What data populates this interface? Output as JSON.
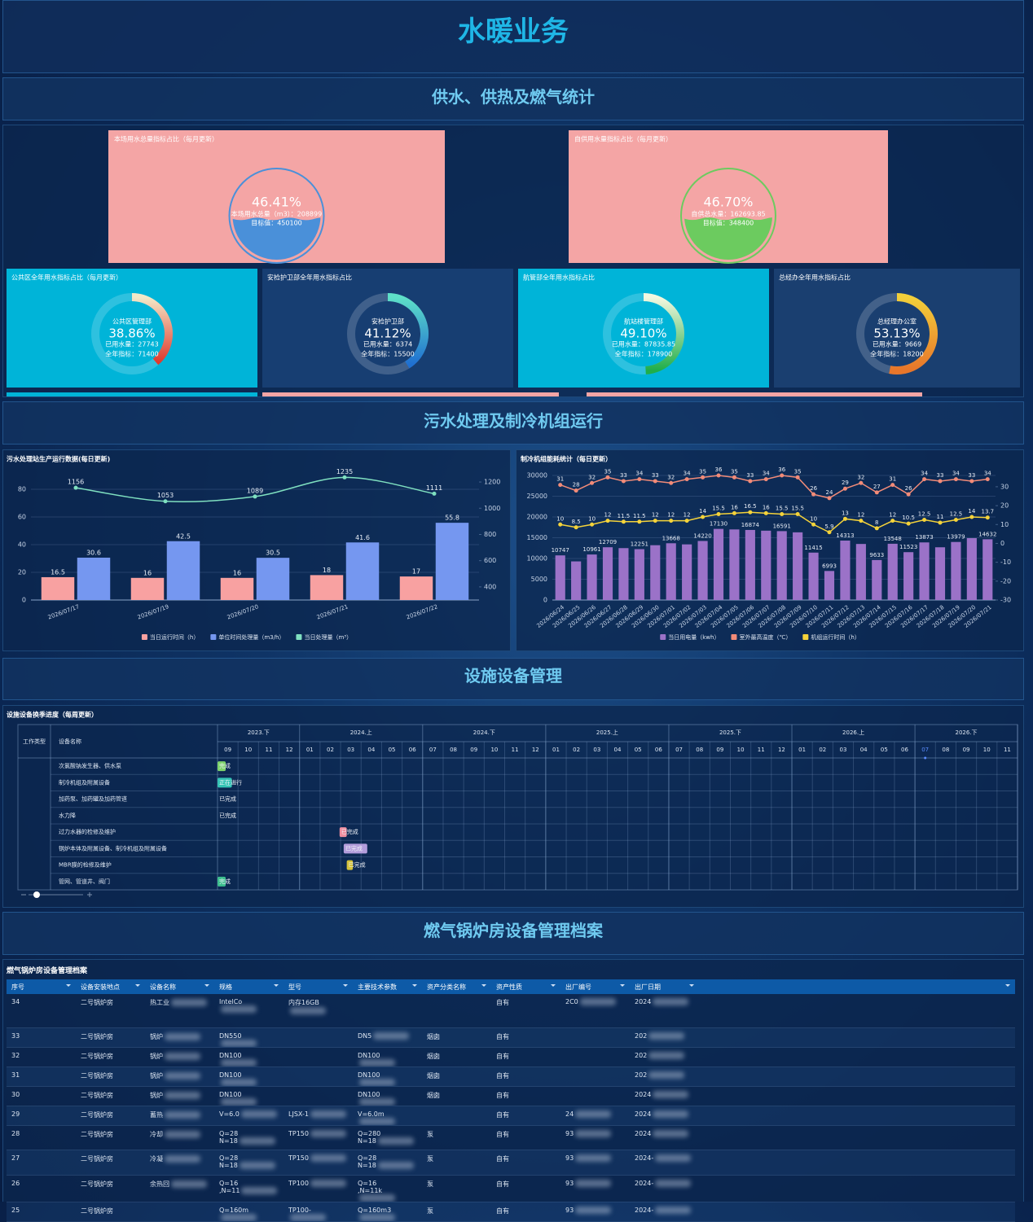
{
  "header": {
    "title": "水暖业务"
  },
  "sections": [
    "供水、供热及燃气统计",
    "污水处理及制冷机组运行",
    "设施设备管理",
    "燃气锅炉房设备管理档案"
  ],
  "liquid_gauges": [
    {
      "title": "本场用水总量指标占比（每月更新）",
      "percent": 46.41,
      "percent_label": "46.41%",
      "lines": [
        "本场用水总量（m3）：208899",
        "目标值：450100"
      ],
      "color": "#4a90d9",
      "card_color": "#f4a5a5"
    },
    {
      "title": "自供用水量指标占比（每月更新）",
      "percent": 46.7,
      "percent_label": "46.70%",
      "lines": [
        "自供总水量：162693.85",
        "目标值：348400"
      ],
      "color": "#6ccb5f",
      "card_color": "#f4a5a5"
    }
  ],
  "ring_gauges": [
    {
      "title": "公共区全年用水指标占比（每月更新）",
      "name": "公共区管理部",
      "percent": 38.86,
      "percent_label": "38.86%",
      "lines": [
        "已用水量：27743",
        "全年指标：71400"
      ],
      "colors": [
        "#f3e9c8",
        "#e03a2e"
      ],
      "card_color": "#00b4d8"
    },
    {
      "title": "安检护卫部全年用水指标占比",
      "name": "安检护卫部",
      "percent": 41.12,
      "percent_label": "41.12%",
      "lines": [
        "已用水量：6374",
        "全年指标：15500"
      ],
      "colors": [
        "#5ee0c8",
        "#1f6fd1"
      ],
      "card_color": "#173e72"
    },
    {
      "title": "航管部全年用水指标占比",
      "name": "航站楼管理部",
      "percent": 49.1,
      "percent_label": "49.10%",
      "lines": [
        "已用水量：87835.85",
        "全年指标：178900"
      ],
      "colors": [
        "#f4f8e0",
        "#1fae4a"
      ],
      "card_color": "#00b4d8"
    },
    {
      "title": "总经办全年用水指标占比",
      "name": "总经理办公室",
      "percent": 53.13,
      "percent_label": "53.13%",
      "lines": [
        "已用水量：9669",
        "全年指标：18200"
      ],
      "colors": [
        "#f2d03a",
        "#e8762a"
      ],
      "card_color": "#1a3f70"
    }
  ],
  "chart_data": [
    {
      "type": "bar",
      "title": "污水处理站生产运行数据(每日更新)",
      "smooth": true,
      "grid": true,
      "categories": [
        "2026/07/17",
        "2026/07/19",
        "2026/07/20",
        "2026/07/21",
        "2026/07/22"
      ],
      "series": [
        {
          "name": "当日运行时间（h）",
          "color": "#f8a1a1",
          "values": [
            16.5,
            16,
            16,
            18,
            17
          ]
        },
        {
          "name": "单位时间处理量（m3/h）",
          "color": "#7597f0",
          "values": [
            30.6,
            42.5,
            30.5,
            41.6,
            55.8
          ]
        },
        {
          "name": "当日处理量（m³）",
          "color": "#7fe0c0",
          "axis": "y2",
          "values": [
            1156,
            1053,
            1089,
            1235,
            1111
          ]
        }
      ],
      "ylim": [
        0,
        90
      ],
      "yticks": [
        0,
        20,
        40,
        60,
        80
      ],
      "y2lim": [
        300,
        1250
      ],
      "y2ticks": [
        400,
        600,
        800,
        1000,
        1200
      ]
    },
    {
      "type": "bar",
      "title": "制冷机组能耗统计（每日更新）",
      "smooth": false,
      "grid": true,
      "categories": [
        "2026/06/24",
        "2026/06/25",
        "2026/06/26",
        "2026/06/27",
        "2026/06/28",
        "2026/06/29",
        "2026/06/30",
        "2026/07/01",
        "2026/07/02",
        "2026/07/03",
        "2026/07/04",
        "2026/07/05",
        "2026/07/06",
        "2026/07/07",
        "2026/07/08",
        "2026/07/09",
        "2026/07/10",
        "2026/07/11",
        "2026/07/12",
        "2026/07/13",
        "2026/07/14",
        "2026/07/15",
        "2026/07/16",
        "2026/07/17",
        "2026/07/18",
        "2026/07/19",
        "2026/07/20",
        "2026/07/21"
      ],
      "series": [
        {
          "name": "当日用电量（kwh）",
          "color": "#9b72c8",
          "values": [
            10747,
            9300,
            10961,
            12709,
            12500,
            12251,
            13200,
            13668,
            13400,
            14220,
            17130,
            17000,
            16874,
            16700,
            16591,
            16300,
            11415,
            6993,
            14313,
            13500,
            9633,
            13548,
            11523,
            13873,
            12700,
            13979,
            14900,
            14632
          ],
          "value_labels": [
            "10747",
            null,
            "10961",
            "12709",
            null,
            "12251",
            null,
            "13668",
            null,
            "14220",
            "17130",
            null,
            "16874",
            null,
            "16591",
            null,
            "11415",
            "6993",
            "14313",
            null,
            "9633",
            "13548",
            "11523",
            "13873",
            null,
            "13979",
            null,
            "14632"
          ]
        },
        {
          "name": "室外最高温度（℃）",
          "color": "#f28b78",
          "axis": "y2",
          "values": [
            31,
            28,
            32,
            35,
            33,
            34,
            33,
            32,
            34,
            35,
            36,
            35,
            33,
            34,
            36,
            35,
            26,
            24,
            29,
            32,
            27,
            31,
            26,
            34,
            33,
            34,
            33,
            34
          ]
        },
        {
          "name": "机组运行时间（h）",
          "color": "#f5d33a",
          "axis": "y2",
          "values": [
            10,
            8.5,
            10,
            12,
            11.5,
            11.5,
            12,
            12,
            12,
            14,
            15.5,
            16,
            16.5,
            16,
            15.5,
            15.5,
            10,
            5.9,
            13,
            12,
            8,
            12,
            10.5,
            12.5,
            11,
            12.5,
            14,
            13.7
          ]
        }
      ],
      "ylim": [
        0,
        30000
      ],
      "yticks": [
        0,
        5000,
        10000,
        15000,
        20000,
        25000,
        30000
      ],
      "y2lim": [
        -30,
        36
      ],
      "y2ticks": [
        -30,
        -20,
        -10,
        0,
        10,
        20,
        30
      ]
    }
  ],
  "gantt": {
    "title": "设施设备换季进度（每周更新）",
    "headers": [
      "工作类型",
      "设备名称"
    ],
    "halves": [
      {
        "label": "2023.下",
        "months": 4
      },
      {
        "label": "2024.上",
        "months": 6
      },
      {
        "label": "2024.下",
        "months": 6
      },
      {
        "label": "2025.上",
        "months": 6
      },
      {
        "label": "2025.下",
        "months": 6
      },
      {
        "label": "2026.上",
        "months": 6
      },
      {
        "label": "2026.下",
        "months": 5
      }
    ],
    "months": [
      "09",
      "10",
      "11",
      "12",
      "01",
      "02",
      "03",
      "04",
      "05",
      "06",
      "07",
      "08",
      "09",
      "10",
      "11",
      "12",
      "01",
      "02",
      "03",
      "04",
      "05",
      "06",
      "07",
      "08",
      "09",
      "10",
      "11",
      "12",
      "01",
      "02",
      "03",
      "04",
      "05",
      "06",
      "07",
      "08",
      "09",
      "10",
      "11"
    ],
    "tasks": [
      {
        "name": "次氯酸钠发生器、供水泵",
        "status": "完成",
        "color": "#7ed36b"
      },
      {
        "name": "制冷机组及附属设备",
        "status": "正在进行",
        "color": "#35c3b5"
      },
      {
        "name": "加药泵、加药罐及加药管道",
        "status": "已完成",
        "color": null
      },
      {
        "name": "水力降",
        "status": "已完成",
        "color": null
      },
      {
        "name": "过力水器的检修及维护",
        "status": "已完成",
        "color": "#f08fa0"
      },
      {
        "name": "锅炉本体及附属设备、制冷机组及附属设备",
        "status": "已完成",
        "color": "#b39ddb"
      },
      {
        "name": "MBR膜的检修及维护",
        "status": "已完成",
        "color": "#d4c23a"
      },
      {
        "name": "管网、管道井、阀门",
        "status": "完成",
        "color": "#3dbf8e"
      }
    ]
  },
  "table": {
    "title": "燃气锅炉房设备管理档案",
    "columns": [
      "序号",
      "设备安装地点",
      "设备名称",
      "规格",
      "型号",
      "主要技术参数",
      "资产分类名称",
      "资产性质",
      "出厂编号",
      "出厂日期"
    ],
    "rows": [
      [
        "34",
        "二号锅炉房",
        "热工业",
        "IntelCo",
        "内存16GB",
        "",
        "",
        "自有",
        "2C0",
        "2024"
      ],
      [
        "33",
        "二号锅炉房",
        "锅炉",
        "DN550",
        "",
        "DN5",
        "烟囱",
        "自有",
        "",
        "202"
      ],
      [
        "32",
        "二号锅炉房",
        "锅炉",
        "DN100",
        "",
        "DN100",
        "烟囱",
        "自有",
        "",
        "202"
      ],
      [
        "31",
        "二号锅炉房",
        "锅炉",
        "DN100",
        "",
        "DN100",
        "烟囱",
        "自有",
        "",
        "202"
      ],
      [
        "30",
        "二号锅炉房",
        "锅炉",
        "DN100",
        "",
        "DN100",
        "烟囱",
        "自有",
        "",
        "2024"
      ],
      [
        "29",
        "二号锅炉房",
        "蓄热",
        "V=6.0",
        "LJSX-1",
        "V=6.0m",
        "",
        "自有",
        "24",
        "2024"
      ],
      [
        "28",
        "二号锅炉房",
        "冷却",
        "Q=28\nN=18",
        "TP150",
        "Q=280\nN=18",
        "泵",
        "自有",
        "93",
        "2024"
      ],
      [
        "27",
        "二号锅炉房",
        "冷凝",
        "Q=28\nN=18",
        "TP150",
        "Q=28\nN=18",
        "泵",
        "自有",
        "93",
        "2024-"
      ],
      [
        "26",
        "二号锅炉房",
        "余热回",
        "Q=16\n,N=11",
        "TP100",
        "Q=16\n,N=11k",
        "泵",
        "自有",
        "93",
        "2024-"
      ],
      [
        "25",
        "二号锅炉房",
        "",
        "Q=160m",
        "TP100-",
        "Q=160m3",
        "泵",
        "自有",
        "93",
        "2024-"
      ]
    ]
  }
}
